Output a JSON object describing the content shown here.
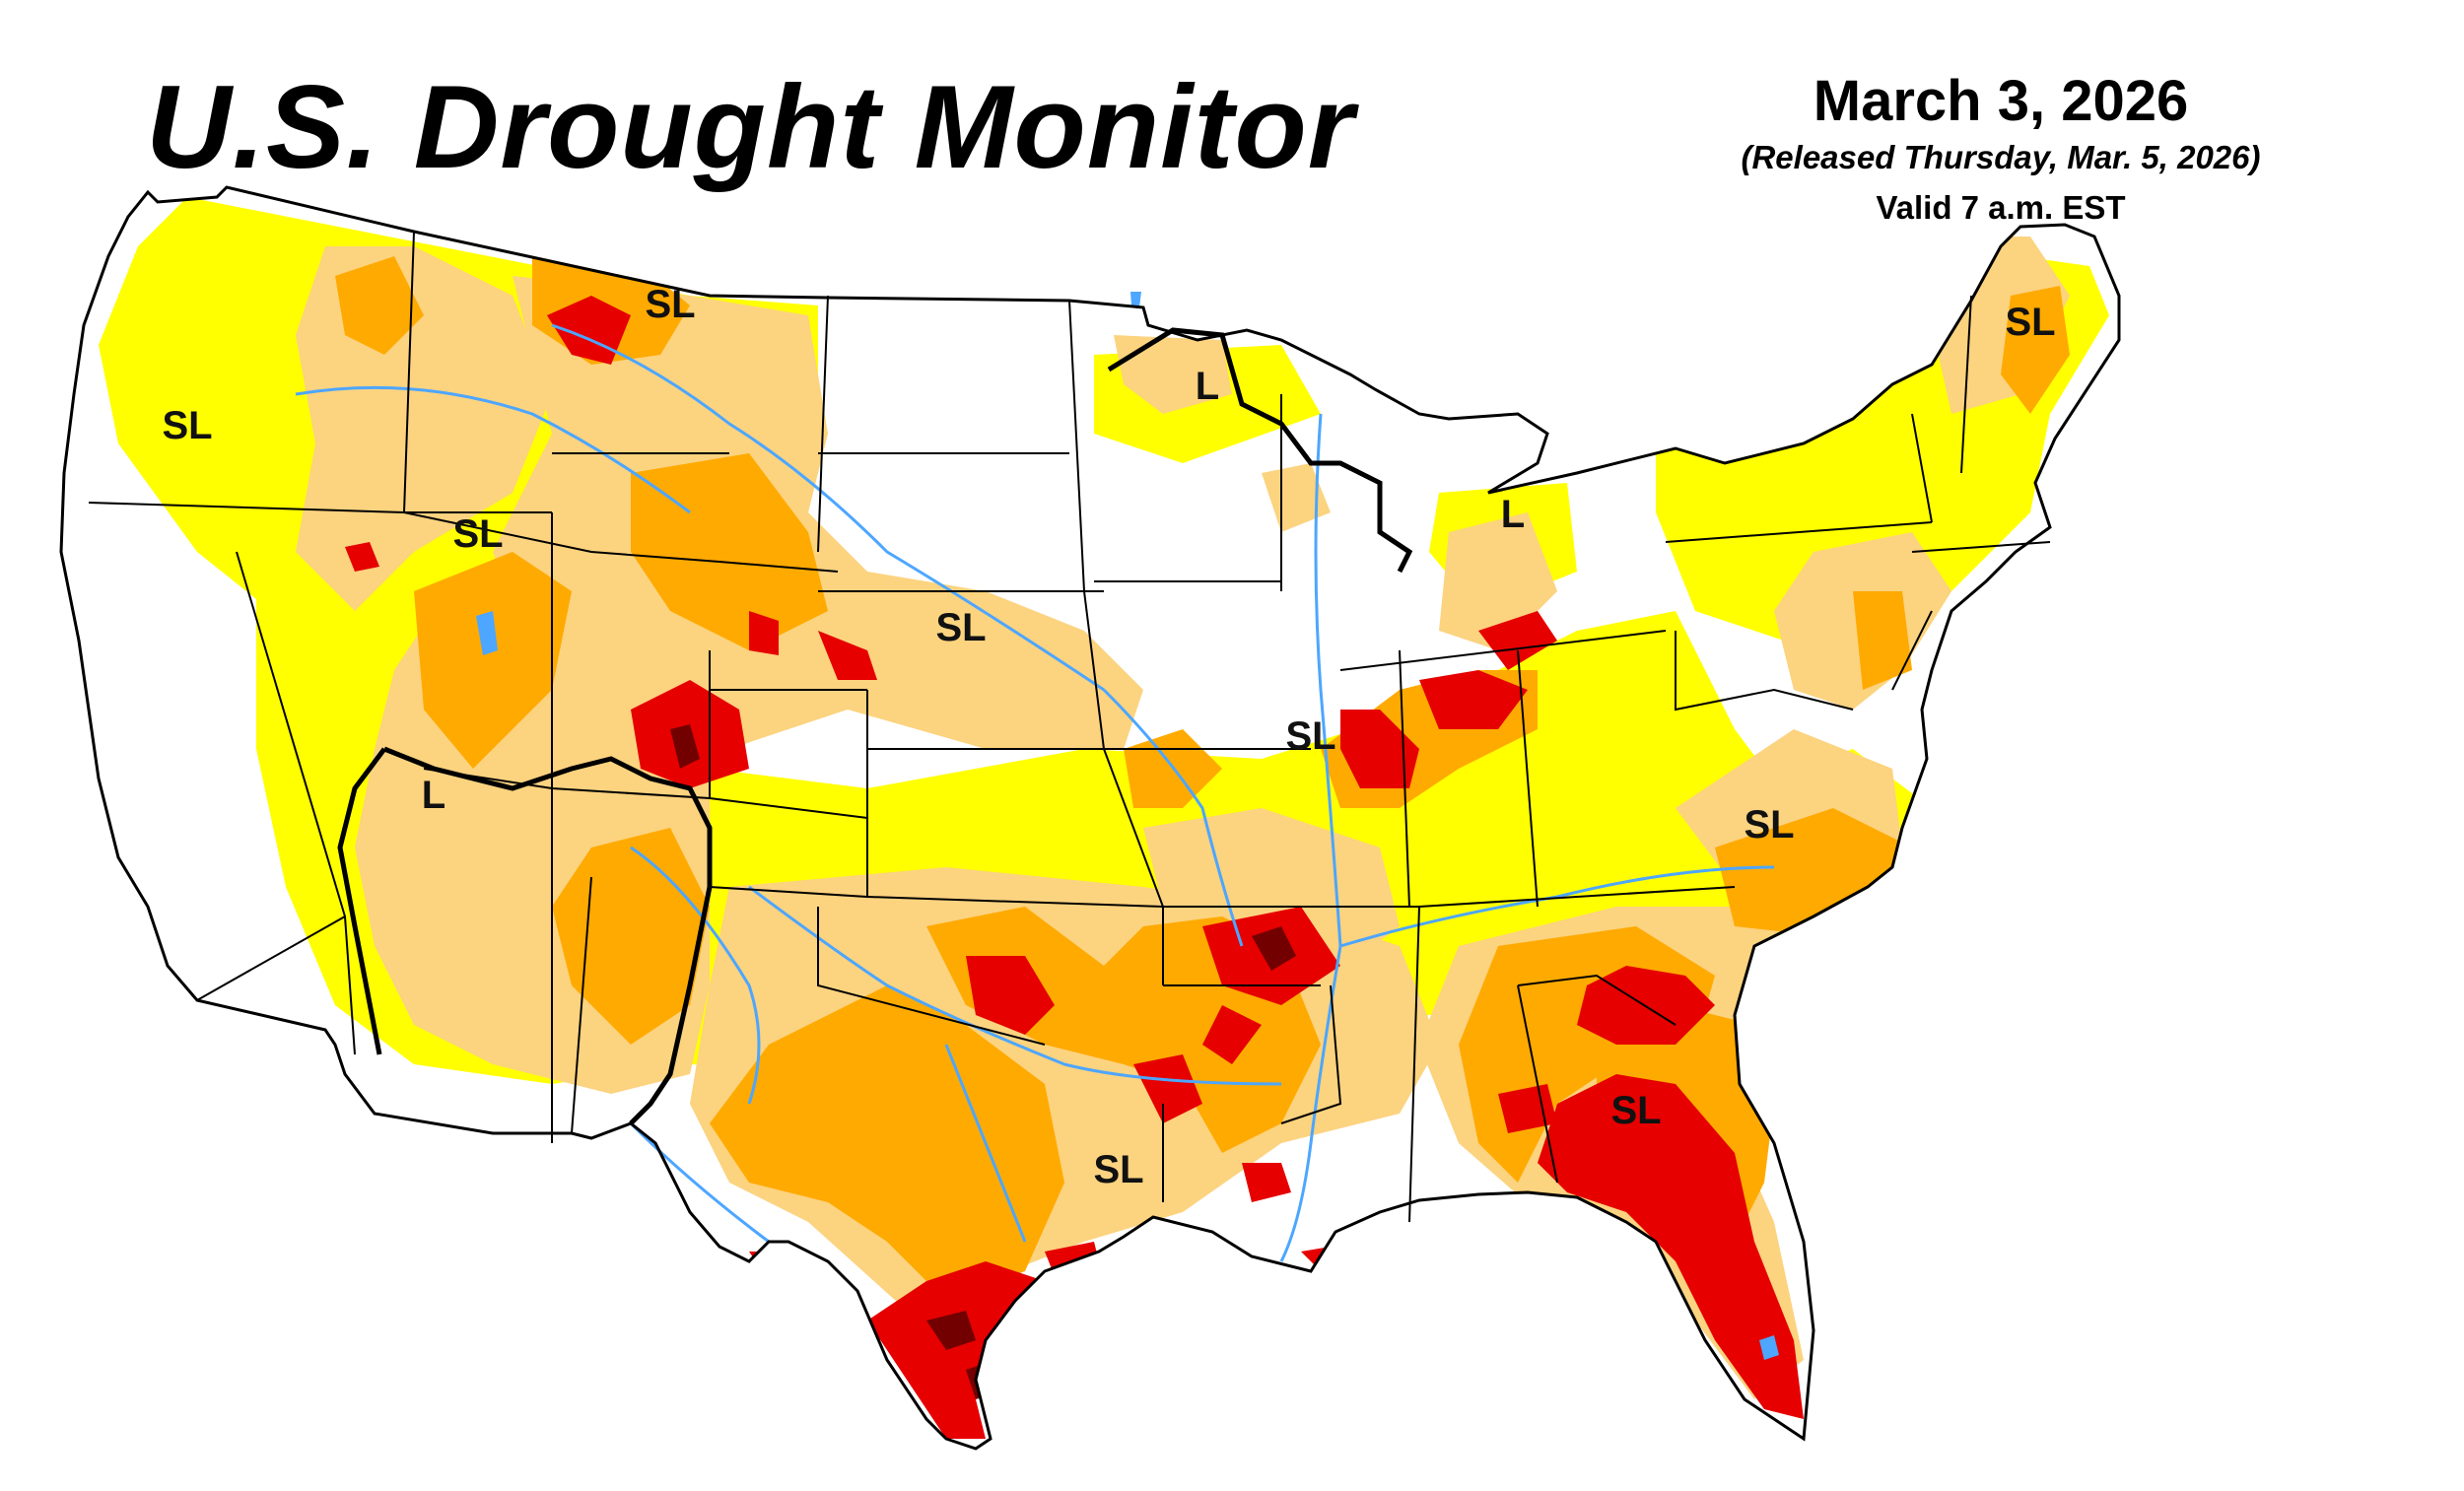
{
  "title": "U.S. Drought Monitor",
  "date": "March 3, 2026",
  "released": "(Released Thursday, Mar. 5, 2026)",
  "valid": "Valid 7 a.m. EST",
  "impact_labels": [
    "SL",
    "SL",
    "SL",
    "L",
    "SL",
    "L",
    "SL",
    "L",
    "SL",
    "SL",
    "SL",
    "SL"
  ],
  "colors": {
    "D0_abnormally_dry": "#ffff00",
    "D1_moderate": "#fcd37f",
    "D2_severe": "#ffaa00",
    "D3_extreme": "#e60000",
    "D4_exceptional": "#730000",
    "water": "#4da6ff",
    "boundary": "#000000"
  }
}
